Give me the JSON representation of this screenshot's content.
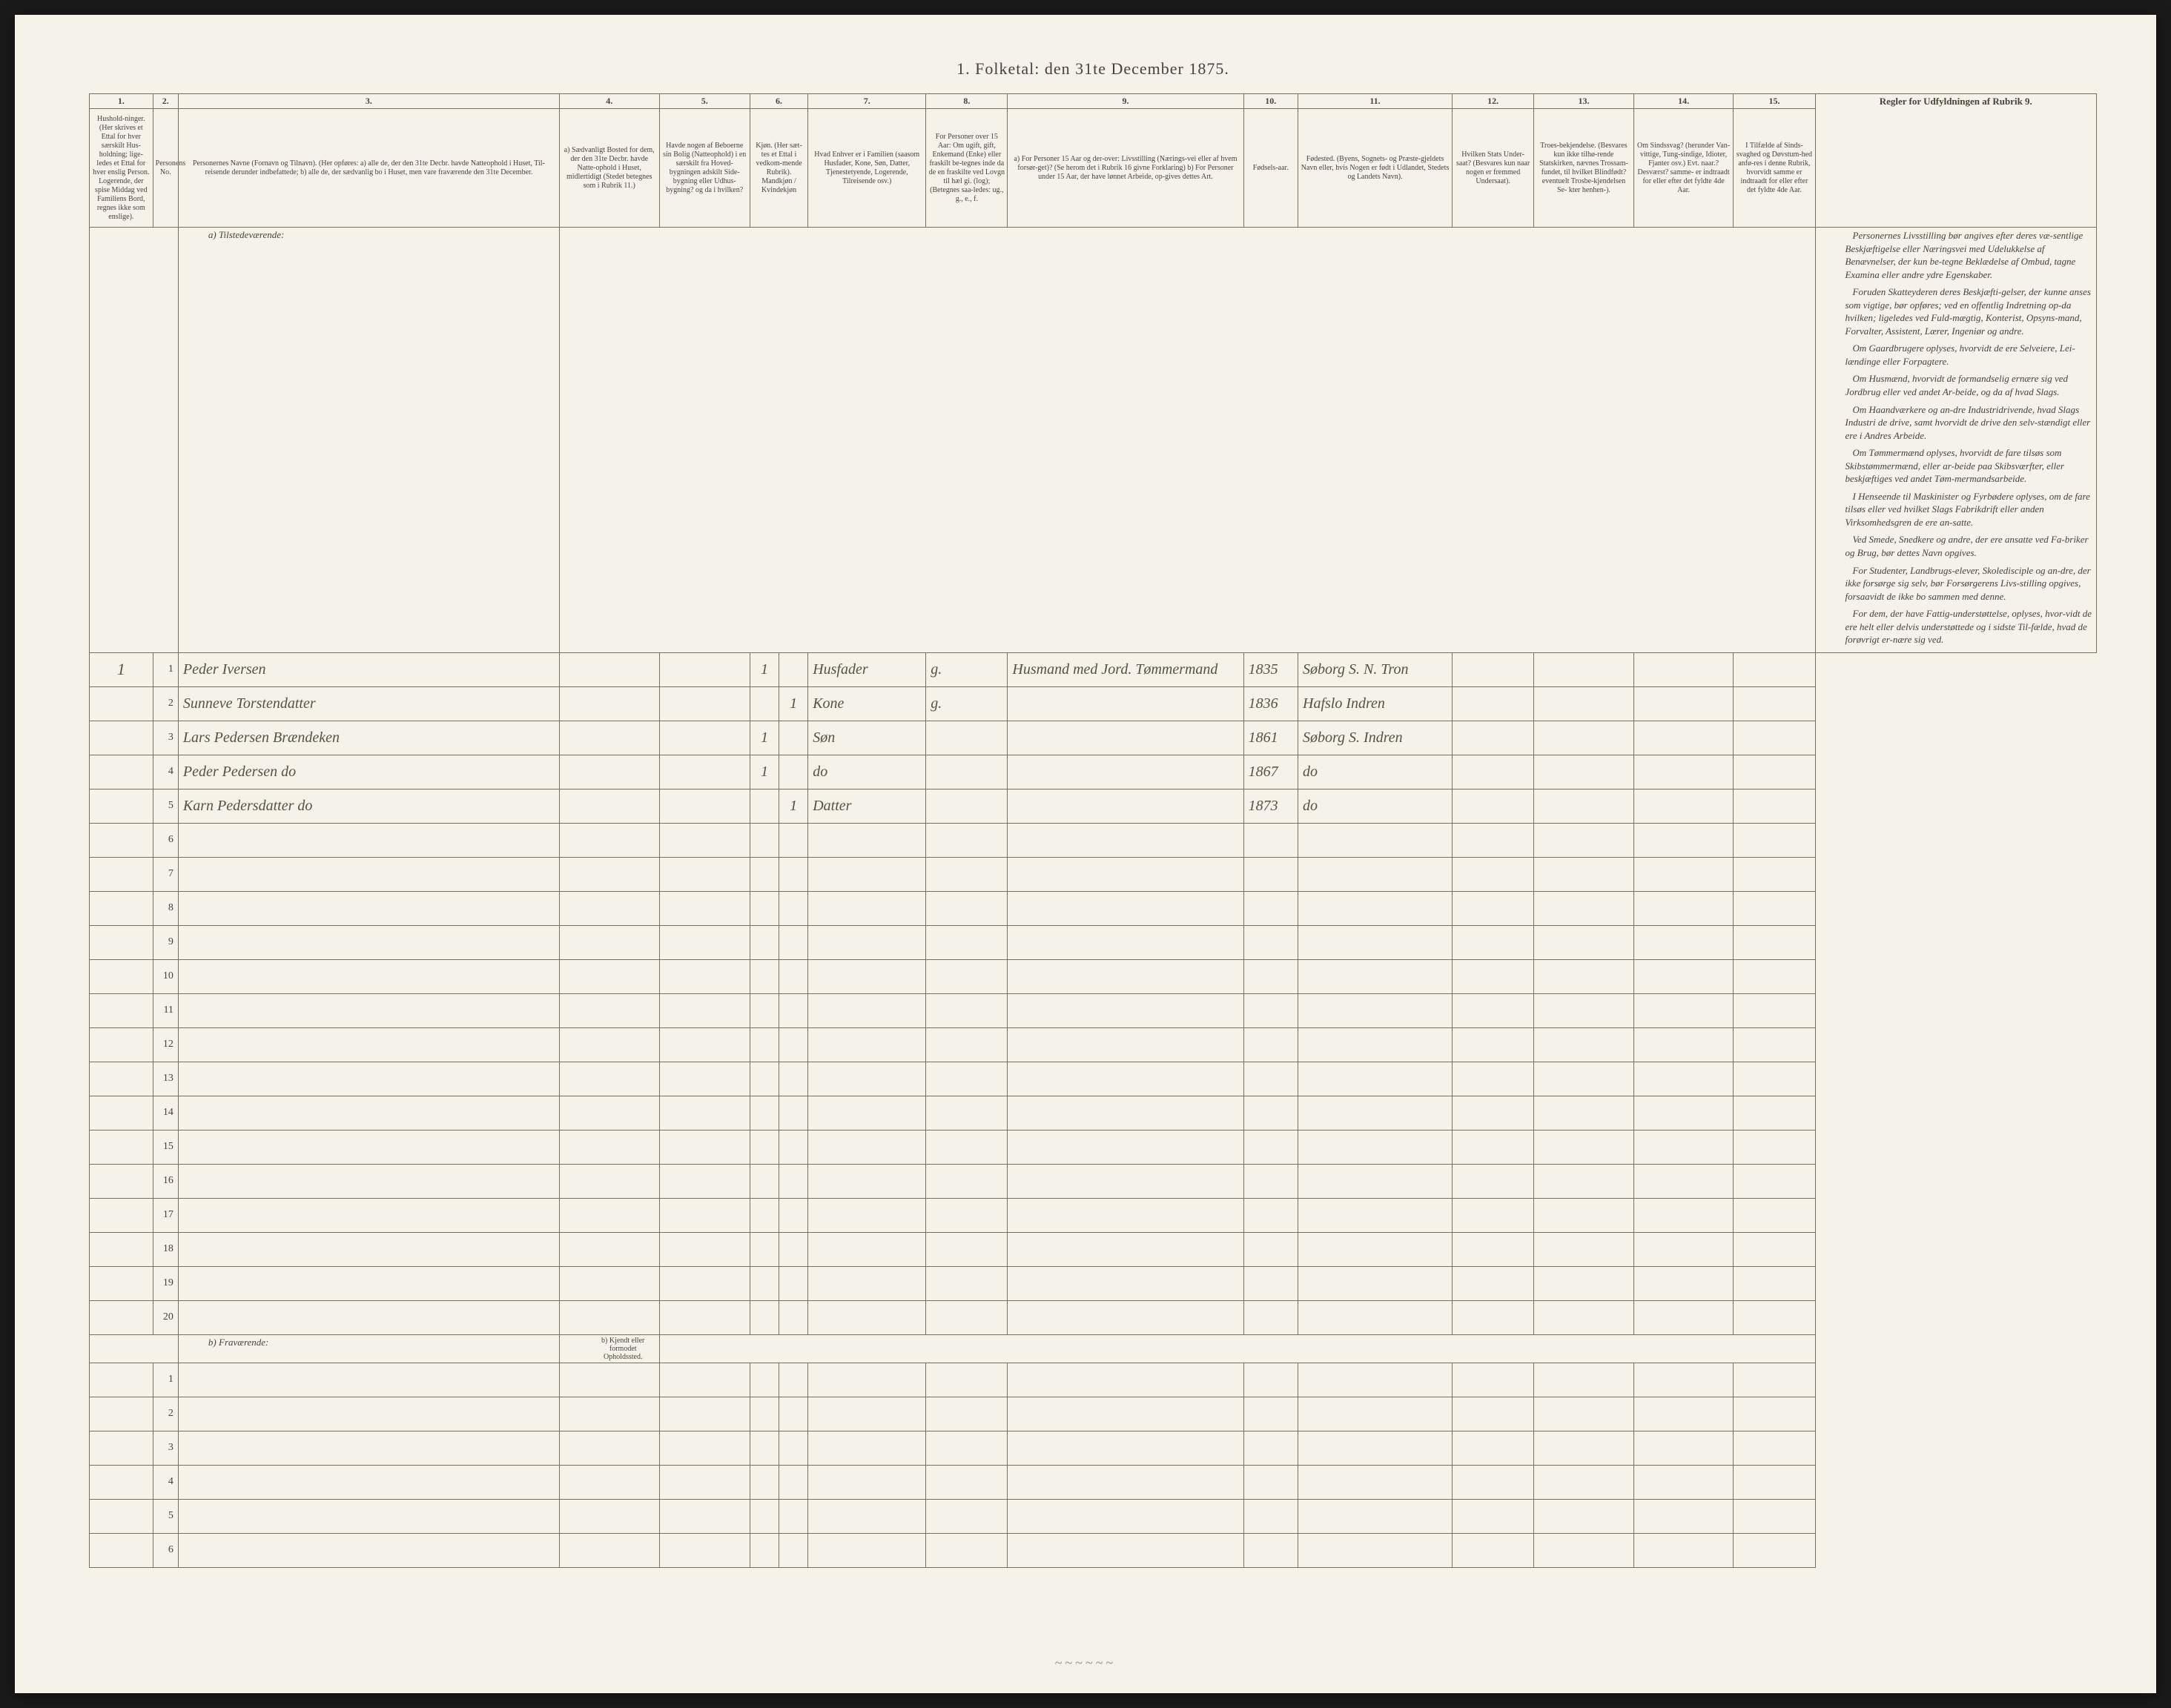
{
  "title": "1. Folketal: den 31te December 1875.",
  "columns": {
    "nums": [
      "1.",
      "2.",
      "3.",
      "4.",
      "5.",
      "6.",
      "7.",
      "8.",
      "9.",
      "10.",
      "11.",
      "12.",
      "13.",
      "14.",
      "15."
    ],
    "headers": {
      "c1": "Hushold-ninger. (Her skrives et Ettal for hver særskilt Hus-holdning; lige-ledes et Ettal for hver enslig Person. Logerende, der spise Middag ved Familiens Bord, regnes ikke som enslige).",
      "c2": "Personens No.",
      "c3": "Personernes Navne (Fornavn og Tilnavn). (Her opføres: a) alle de, der den 31te Decbr. havde Natteophold i Huset, Til-reisende derunder indbefattede; b) alle de, der sædvanlig bo i Huset, men vare fraværende den 31te December.",
      "c4": "a) Sædvanligt Bosted for dem, der den 31te Decbr. havde Natte-ophold i Huset, midlertidigt (Stedet betegnes som i Rubrik 11.)",
      "c5": "Havde nogen af Beboerne sin Bolig (Natteophold) i en særskilt fra Hoved-bygningen adskilt Side-bygning eller Udhus-bygning? og da i hvilken?",
      "c6": "Kjøn. (Her sæt-tes et Ettal i vedkom-mende Rubrik). Mandkjøn / Kvindekjøn",
      "c7": "Hvad Enhver er i Familien (saasom Husfader, Kone, Søn, Datter, Tjenestetyende, Logerende, Tilreisende osv.)",
      "c8": "For Personer over 15 Aar: Om ugift, gift, Enkemand (Enke) eller fraskilt be-tegnes inde da de en fraskilte ved Lovgn til hæl gi. (log); (Betegnes saa-ledes: ug., g., e., f.",
      "c9": "a) For Personer 15 Aar og der-over: Livsstilling (Nærings-vei eller af hvem forsør-get)? (Se herom det i Rubrik 16 givne Forklaring) b) For Personer under 15 Aar, der have lønnet Arbeide, op-gives dettes Art.",
      "c10": "Fødsels-aar.",
      "c11": "Fødested. (Byens, Sognets- og Præste-gjeldets Navn eller, hvis Nogen er født i Udlandet, Stedets og Landets Navn).",
      "c12": "Hvilken Stats Under-saat? (Besvares kun naar nogen er fremmed Undersaat).",
      "c13": "Troes-bekjendelse. (Besvares kun ikke tilhø-rende Statskirken, nævnes Trossam-fundet, til hvilket Blindfødt? eventuelt Trosbe-kjendelsen Se- kter henhen-).",
      "c14": "Om Sindssvag? (herunder Van-vittige, Tung-sindige, Idioter, Fjanter osv.) Evt. naar.? Desværst? samme- er indtraadt for eller efter det fyldte 4de Aar.",
      "c15": "I Tilfælde af Sinds-svaghed og Døvstum-hed anfø-res i denne Rubrik, hvorvidt samme er indtraadt for eller efter det fyldte 4de Aar."
    }
  },
  "sections": {
    "present": "a) Tilstedeværende:",
    "absent": "b) Fraværende:",
    "absent_col4": "b) Kjendt eller formodet Opholdssted."
  },
  "instructions": {
    "head": "Regler for Udfyldningen af Rubrik 9.",
    "paras": [
      "Personernes Livsstilling bør angives efter deres væ-sentlige Beskjæftigelse eller Næringsvei med Udelukkelse af Benævnelser, der kun be-tegne Beklædelse af Ombud, tagne Examina eller andre ydre Egenskaber.",
      "Foruden Skatteyderen deres Beskjæfti-gelser, der kunne anses som vigtige, bør opføres; ved en offentlig Indretning op-da hvilken; ligeledes ved Fuld-mægtig, Konterist, Opsyns-mand, Forvalter, Assistent, Lærer, Ingeniør og andre.",
      "Om Gaardbrugere oplyses, hvorvidt de ere Selveiere, Lei-lændinge eller Forpagtere.",
      "Om Husmænd, hvorvidt de formandselig ernære sig ved Jordbrug eller ved andet Ar-beide, og da af hvad Slags.",
      "Om Haandværkere og an-dre Industridrivende, hvad Slags Industri de drive, samt hvorvidt de drive den selv-stændigt eller ere i Andres Arbeide.",
      "Om Tømmermænd oplyses, hvorvidt de fare tilsøs som Skibstømmermænd, eller ar-beide paa Skibsværfter, eller beskjæftiges ved andet Tøm-mermandsarbeide.",
      "I Henseende til Maskinister og Fyrbødere oplyses, om de fare tilsøs eller ved hvilket Slags Fabrikdrift eller anden Virksomhedsgren de ere an-satte.",
      "Ved Smede, Snedkere og andre, der ere ansatte ved Fa-briker og Brug, bør dettes Navn opgives.",
      "For Studenter, Landbrugs-elever, Skoledisciple og an-dre, der ikke forsørge sig selv, bør Forsørgerens Livs-stilling opgives, forsaavidt de ikke bo sammen med denne.",
      "For dem, der have Fattig-understøttelse, oplyses, hvor-vidt de ere helt eller delvis understøttede og i sidste Til-fælde, hvad de forøvrigt er-nære sig ved."
    ]
  },
  "rows": {
    "present": [
      {
        "hh": "1",
        "n": "1",
        "name": "Peder Iversen",
        "c6a": "1",
        "c6b": "",
        "rel": "Husfader",
        "civ": "g.",
        "occ": "Husmand med Jord. Tømmermand",
        "year": "1835",
        "birthplace": "Søborg S. N. Tron"
      },
      {
        "hh": "",
        "n": "2",
        "name": "Sunneve Torstendatter",
        "c6a": "",
        "c6b": "1",
        "rel": "Kone",
        "civ": "g.",
        "occ": "",
        "year": "1836",
        "birthplace": "Hafslo Indren"
      },
      {
        "hh": "",
        "n": "3",
        "name": "Lars Pedersen Brændeken",
        "c6a": "1",
        "c6b": "",
        "rel": "Søn",
        "civ": "",
        "occ": "",
        "year": "1861",
        "birthplace": "Søborg S. Indren"
      },
      {
        "hh": "",
        "n": "4",
        "name": "Peder Pedersen do",
        "c6a": "1",
        "c6b": "",
        "rel": "do",
        "civ": "",
        "occ": "",
        "year": "1867",
        "birthplace": "do"
      },
      {
        "hh": "",
        "n": "5",
        "name": "Karn Pedersdatter do",
        "c6a": "",
        "c6b": "1",
        "rel": "Datter",
        "civ": "",
        "occ": "",
        "year": "1873",
        "birthplace": "do"
      },
      {
        "hh": "",
        "n": "6",
        "name": "",
        "c6a": "",
        "c6b": "",
        "rel": "",
        "civ": "",
        "occ": "",
        "year": "",
        "birthplace": ""
      },
      {
        "hh": "",
        "n": "7",
        "name": "",
        "c6a": "",
        "c6b": "",
        "rel": "",
        "civ": "",
        "occ": "",
        "year": "",
        "birthplace": ""
      },
      {
        "hh": "",
        "n": "8",
        "name": "",
        "c6a": "",
        "c6b": "",
        "rel": "",
        "civ": "",
        "occ": "",
        "year": "",
        "birthplace": ""
      },
      {
        "hh": "",
        "n": "9",
        "name": "",
        "c6a": "",
        "c6b": "",
        "rel": "",
        "civ": "",
        "occ": "",
        "year": "",
        "birthplace": ""
      },
      {
        "hh": "",
        "n": "10",
        "name": "",
        "c6a": "",
        "c6b": "",
        "rel": "",
        "civ": "",
        "occ": "",
        "year": "",
        "birthplace": ""
      },
      {
        "hh": "",
        "n": "11",
        "name": "",
        "c6a": "",
        "c6b": "",
        "rel": "",
        "civ": "",
        "occ": "",
        "year": "",
        "birthplace": ""
      },
      {
        "hh": "",
        "n": "12",
        "name": "",
        "c6a": "",
        "c6b": "",
        "rel": "",
        "civ": "",
        "occ": "",
        "year": "",
        "birthplace": ""
      },
      {
        "hh": "",
        "n": "13",
        "name": "",
        "c6a": "",
        "c6b": "",
        "rel": "",
        "civ": "",
        "occ": "",
        "year": "",
        "birthplace": ""
      },
      {
        "hh": "",
        "n": "14",
        "name": "",
        "c6a": "",
        "c6b": "",
        "rel": "",
        "civ": "",
        "occ": "",
        "year": "",
        "birthplace": ""
      },
      {
        "hh": "",
        "n": "15",
        "name": "",
        "c6a": "",
        "c6b": "",
        "rel": "",
        "civ": "",
        "occ": "",
        "year": "",
        "birthplace": ""
      },
      {
        "hh": "",
        "n": "16",
        "name": "",
        "c6a": "",
        "c6b": "",
        "rel": "",
        "civ": "",
        "occ": "",
        "year": "",
        "birthplace": ""
      },
      {
        "hh": "",
        "n": "17",
        "name": "",
        "c6a": "",
        "c6b": "",
        "rel": "",
        "civ": "",
        "occ": "",
        "year": "",
        "birthplace": ""
      },
      {
        "hh": "",
        "n": "18",
        "name": "",
        "c6a": "",
        "c6b": "",
        "rel": "",
        "civ": "",
        "occ": "",
        "year": "",
        "birthplace": ""
      },
      {
        "hh": "",
        "n": "19",
        "name": "",
        "c6a": "",
        "c6b": "",
        "rel": "",
        "civ": "",
        "occ": "",
        "year": "",
        "birthplace": ""
      },
      {
        "hh": "",
        "n": "20",
        "name": "",
        "c6a": "",
        "c6b": "",
        "rel": "",
        "civ": "",
        "occ": "",
        "year": "",
        "birthplace": ""
      }
    ],
    "absent": [
      {
        "n": "1"
      },
      {
        "n": "2"
      },
      {
        "n": "3"
      },
      {
        "n": "4"
      },
      {
        "n": "5"
      },
      {
        "n": "6"
      }
    ]
  },
  "scribble": "~~~~~~"
}
